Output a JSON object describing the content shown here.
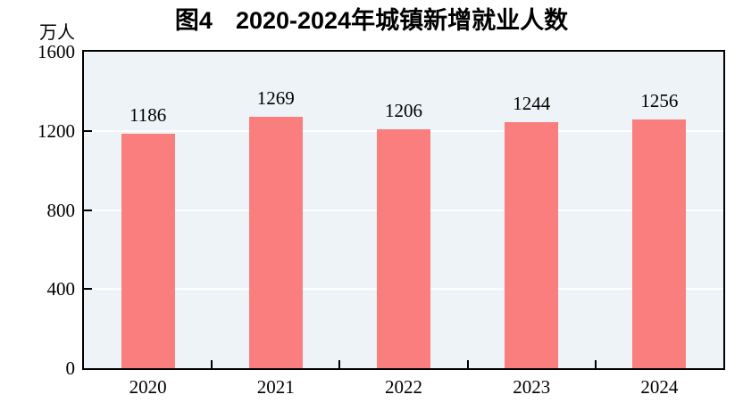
{
  "chart_data": {
    "type": "bar",
    "title": "图4  2020-2024年城镇新增就业人数",
    "title_prefix": "图4",
    "title_main": "2020-2024年城镇新增就业人数",
    "ylabel": "万人",
    "xlabel": "",
    "categories": [
      "2020",
      "2021",
      "2022",
      "2023",
      "2024"
    ],
    "values": [
      1186,
      1269,
      1206,
      1244,
      1256
    ],
    "ylim": [
      0,
      1600
    ],
    "yticks": [
      0,
      400,
      800,
      1200,
      1600
    ],
    "grid": true,
    "legend_position": "none",
    "value_labels": true,
    "bar_color": "#FB7E7E",
    "plot_bg_color": "#EDF3F6",
    "grid_color": "#FFFFFF",
    "axis_color": "#000000",
    "text_color": "#000000"
  }
}
